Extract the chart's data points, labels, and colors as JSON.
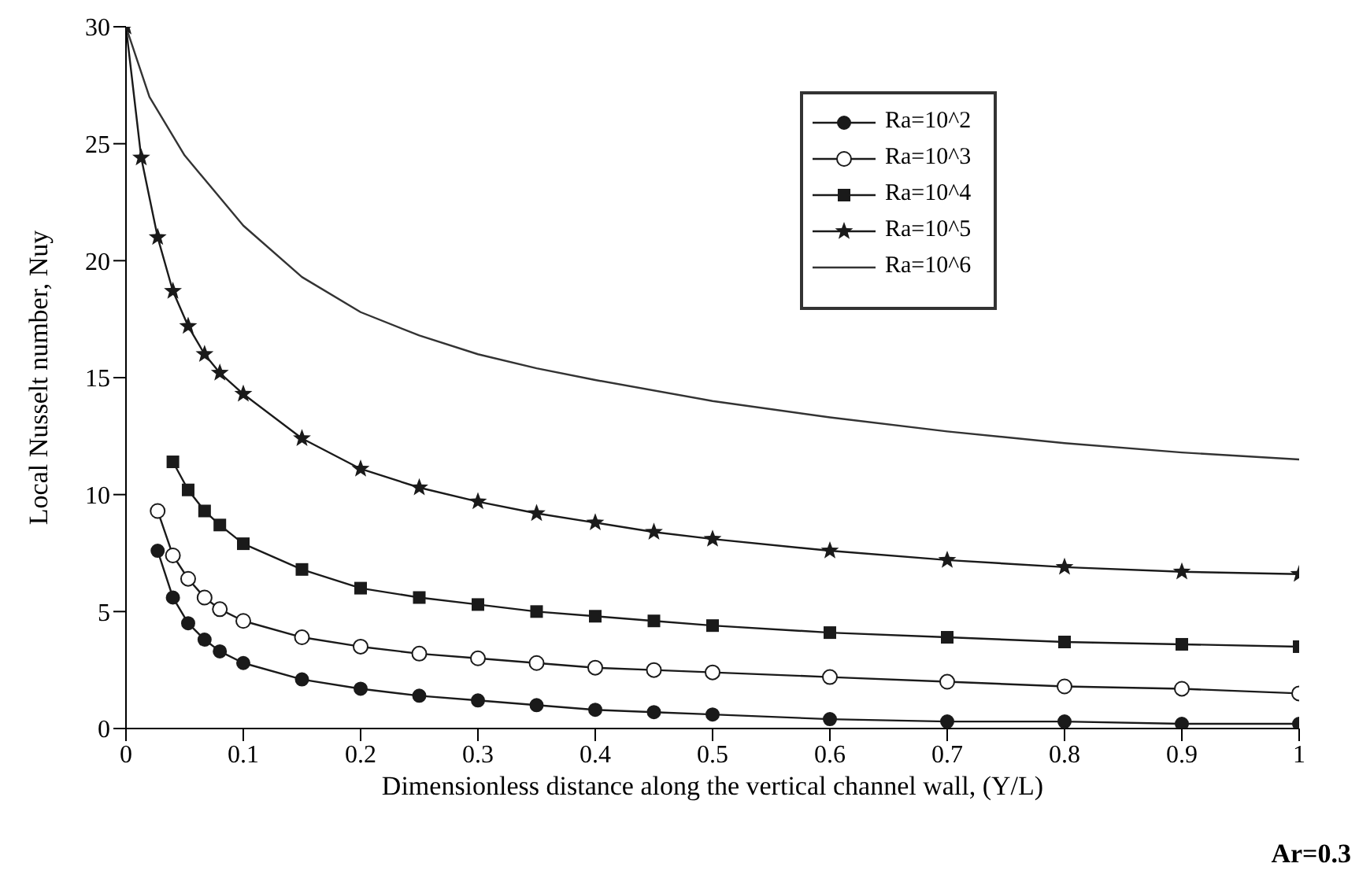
{
  "chart_data": {
    "type": "line",
    "xlabel": "Dimensionless distance along the vertical channel wall, (Y/L)",
    "ylabel": "Local Nusselt number, Nuy",
    "annotations": [
      "Ar=0.3"
    ],
    "xlim": [
      0,
      1
    ],
    "ylim": [
      0,
      30
    ],
    "xticks": [
      0,
      0.1,
      0.2,
      0.3,
      0.4,
      0.5,
      0.6,
      0.7,
      0.8,
      0.9,
      1
    ],
    "yticks": [
      0,
      5,
      10,
      15,
      20,
      25,
      30
    ],
    "grid": false,
    "legend": "top right",
    "series": [
      {
        "name": "Ra=10^2",
        "color": "#1a1a1a",
        "marker": "circle",
        "x": [
          0.027,
          0.04,
          0.053,
          0.067,
          0.08,
          0.1,
          0.15,
          0.2,
          0.25,
          0.3,
          0.35,
          0.4,
          0.45,
          0.5,
          0.6,
          0.7,
          0.8,
          0.9,
          1
        ],
        "values": [
          7.6,
          5.6,
          4.5,
          3.8,
          3.3,
          2.8,
          2.1,
          1.7,
          1.4,
          1.2,
          1.0,
          0.8,
          0.7,
          0.6,
          0.4,
          0.3,
          0.3,
          0.2,
          0.2
        ]
      },
      {
        "name": "Ra=10^3",
        "color": "#1a1a1a",
        "marker": "circle-open",
        "x": [
          0.027,
          0.04,
          0.053,
          0.067,
          0.08,
          0.1,
          0.15,
          0.2,
          0.25,
          0.3,
          0.35,
          0.4,
          0.45,
          0.5,
          0.6,
          0.7,
          0.8,
          0.9,
          1
        ],
        "values": [
          9.3,
          7.4,
          6.4,
          5.6,
          5.1,
          4.6,
          3.9,
          3.5,
          3.2,
          3.0,
          2.8,
          2.6,
          2.5,
          2.4,
          2.2,
          2.0,
          1.8,
          1.7,
          1.5
        ]
      },
      {
        "name": "Ra=10^4",
        "color": "#1a1a1a",
        "marker": "square",
        "x": [
          0.04,
          0.053,
          0.067,
          0.08,
          0.1,
          0.15,
          0.2,
          0.25,
          0.3,
          0.35,
          0.4,
          0.45,
          0.5,
          0.6,
          0.7,
          0.8,
          0.9,
          1
        ],
        "values": [
          11.4,
          10.2,
          9.3,
          8.7,
          7.9,
          6.8,
          6.0,
          5.6,
          5.3,
          5.0,
          4.8,
          4.6,
          4.4,
          4.1,
          3.9,
          3.7,
          3.6,
          3.5
        ]
      },
      {
        "name": "Ra=10^5",
        "color": "#1a1a1a",
        "marker": "star",
        "x": [
          0,
          0.013,
          0.027,
          0.04,
          0.053,
          0.067,
          0.08,
          0.1,
          0.15,
          0.2,
          0.25,
          0.3,
          0.35,
          0.4,
          0.45,
          0.5,
          0.6,
          0.7,
          0.8,
          0.9,
          1
        ],
        "values": [
          30,
          24.4,
          21,
          18.7,
          17.2,
          16,
          15.2,
          14.3,
          12.4,
          11.1,
          10.3,
          9.7,
          9.2,
          8.8,
          8.4,
          8.1,
          7.6,
          7.2,
          6.9,
          6.7,
          6.6
        ]
      },
      {
        "name": "Ra=10^6",
        "color": "#333333",
        "marker": "none",
        "x": [
          0,
          0.02,
          0.05,
          0.1,
          0.15,
          0.2,
          0.25,
          0.3,
          0.35,
          0.4,
          0.5,
          0.6,
          0.7,
          0.8,
          0.9,
          1
        ],
        "values": [
          30,
          27,
          24.5,
          21.5,
          19.3,
          17.8,
          16.8,
          16,
          15.4,
          14.9,
          14.0,
          13.3,
          12.7,
          12.2,
          11.8,
          11.5
        ]
      }
    ]
  }
}
